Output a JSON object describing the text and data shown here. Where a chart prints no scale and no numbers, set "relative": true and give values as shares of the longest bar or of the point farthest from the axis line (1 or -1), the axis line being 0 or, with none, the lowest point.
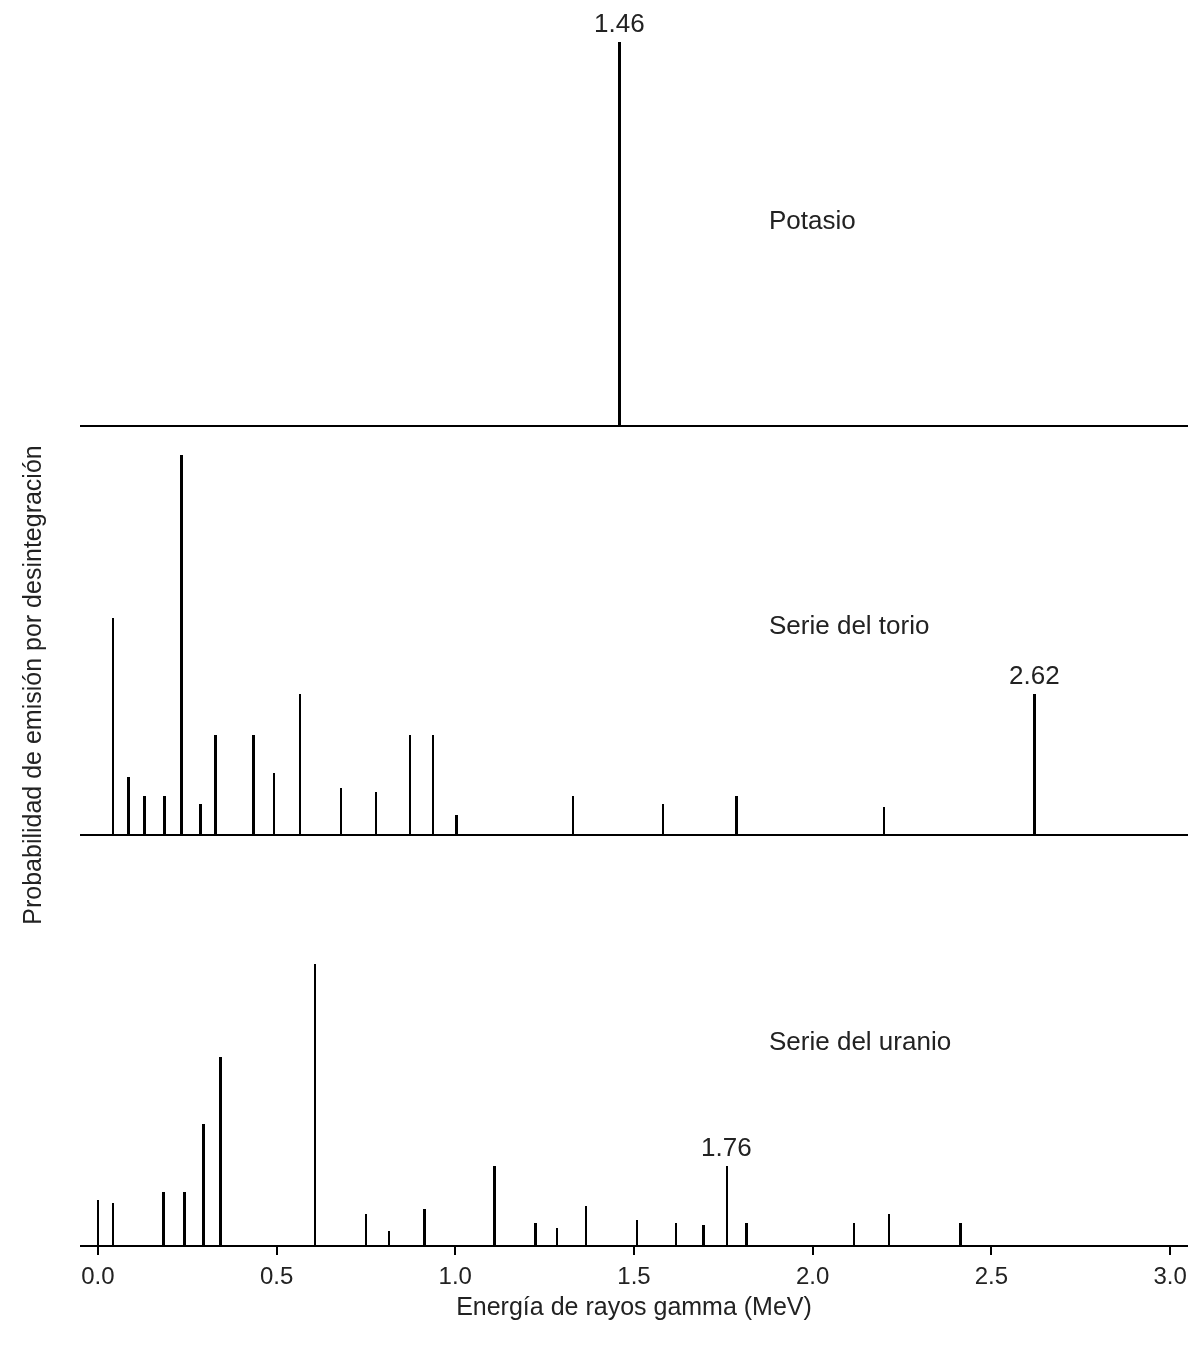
{
  "chart_data": [
    {
      "type": "bar",
      "relative": true,
      "color": "#000000",
      "xlim": [
        -0.05,
        3.05
      ],
      "tick_labels": false,
      "annotations": [
        "Potasio",
        {
          "text": "1.46",
          "x": 1.46,
          "y": 1
        }
      ],
      "x": [
        1.46
      ],
      "values": [
        1
      ]
    },
    {
      "type": "bar",
      "relative": true,
      "color": "#000000",
      "xlim": [
        -0.05,
        3.05
      ],
      "tick_labels": false,
      "ylabel": "Probabilidad de emisión por desintegración",
      "annotations": [
        "Serie del torio",
        {
          "text": "2.62",
          "x": 2.62,
          "y": 0.37
        }
      ],
      "x": [
        0.042,
        0.086,
        0.131,
        0.187,
        0.234,
        0.287,
        0.329,
        0.435,
        0.493,
        0.566,
        0.68,
        0.778,
        0.873,
        0.937,
        1.004,
        1.33,
        1.581,
        1.787,
        2.2,
        2.62
      ],
      "values": [
        0.57,
        0.15,
        0.1,
        0.1,
        1,
        0.08,
        0.26,
        0.26,
        0.16,
        0.37,
        0.12,
        0.11,
        0.26,
        0.26,
        0.05,
        0.1,
        0.08,
        0.1,
        0.07,
        0.37
      ]
    },
    {
      "type": "bar",
      "relative": true,
      "color": "#000000",
      "xlim": [
        -0.05,
        3.05
      ],
      "xticks": [
        {
          "value": 0,
          "label": "0.0"
        },
        0.5,
        {
          "value": 1,
          "label": "1.0"
        },
        1.5,
        {
          "value": 2,
          "label": "2.0"
        },
        2.5,
        {
          "value": 3,
          "label": "3.0"
        }
      ],
      "tick_labels": "x",
      "xlabel": "Energía de rayos gamma (MeV)",
      "annotations": [
        "Serie del uranio",
        {
          "text": "1.76",
          "x": 1.76,
          "y": 0.28
        }
      ],
      "x": [
        0,
        0.042,
        0.184,
        0.243,
        0.296,
        0.343,
        0.608,
        0.75,
        0.814,
        0.914,
        1.11,
        1.224,
        1.285,
        1.366,
        1.508,
        1.617,
        1.695,
        1.76,
        1.815,
        2.116,
        2.214,
        2.414
      ],
      "values": [
        0.16,
        0.15,
        0.19,
        0.19,
        0.43,
        0.67,
        1,
        0.11,
        0.05,
        0.13,
        0.28,
        0.08,
        0.06,
        0.14,
        0.09,
        0.08,
        0.07,
        0.28,
        0.08,
        0.08,
        0.11,
        0.08
      ]
    }
  ]
}
